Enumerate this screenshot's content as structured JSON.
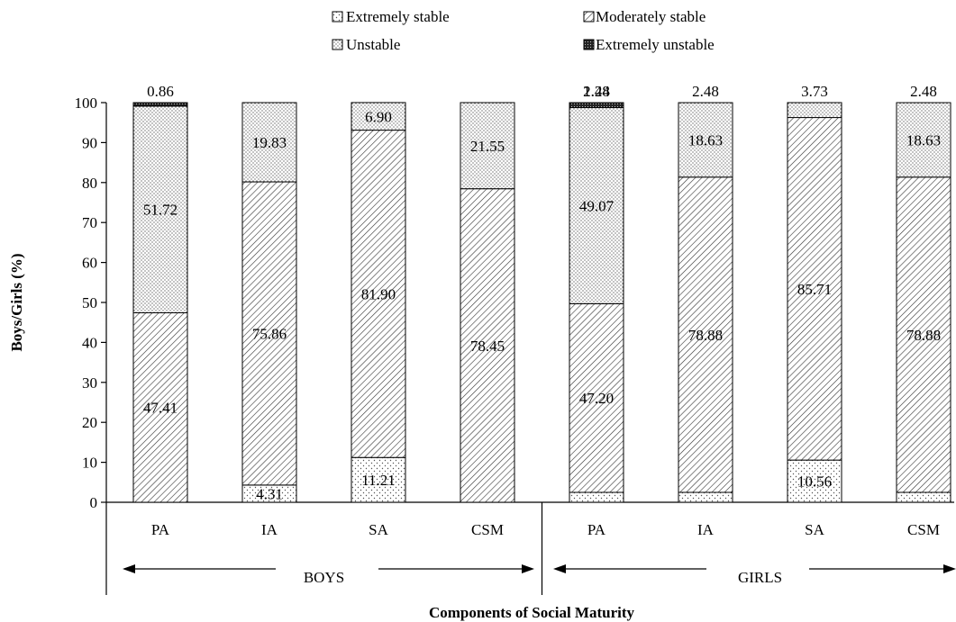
{
  "chart_data": {
    "type": "bar",
    "stacked": true,
    "xlabel": "Components of Social Maturity",
    "ylabel": "Boys/Girls (%)",
    "ylim": [
      0,
      100
    ],
    "yticks": [
      0,
      10,
      20,
      30,
      40,
      50,
      60,
      70,
      80,
      90,
      100
    ],
    "legend_position": "top",
    "groups": [
      {
        "label": "BOYS",
        "categories": [
          "PA",
          "IA",
          "SA",
          "CSM"
        ]
      },
      {
        "label": "GIRLS",
        "categories": [
          "PA",
          "IA",
          "SA",
          "CSM"
        ]
      }
    ],
    "categories": [
      "PA",
      "IA",
      "SA",
      "CSM",
      "PA",
      "IA",
      "SA",
      "CSM"
    ],
    "series": [
      {
        "name": "Extremely stable",
        "pattern": "fine-dots",
        "values": [
          0,
          4.31,
          11.21,
          0,
          2.48,
          2.48,
          10.56,
          2.48
        ],
        "labels": [
          "",
          "4.31",
          "11.21",
          "",
          "2.48",
          "2.48",
          "10.56",
          "2.48"
        ]
      },
      {
        "name": "Moderately stable",
        "pattern": "diagonal-hatch",
        "values": [
          47.41,
          75.86,
          81.9,
          78.45,
          47.2,
          78.88,
          85.71,
          78.88
        ],
        "labels": [
          "47.41",
          "75.86",
          "81.90",
          "78.45",
          "47.20",
          "78.88",
          "85.71",
          "78.88"
        ]
      },
      {
        "name": "Unstable",
        "pattern": "dots",
        "values": [
          51.72,
          19.83,
          6.9,
          21.55,
          49.07,
          18.63,
          3.73,
          18.63
        ],
        "labels": [
          "51.72",
          "19.83",
          "6.90",
          "21.55",
          "49.07",
          "18.63",
          "3.73",
          "18.63"
        ]
      },
      {
        "name": "Extremely unstable",
        "pattern": "dark-dots",
        "values": [
          0.86,
          0,
          0,
          0,
          1.24,
          0,
          0,
          0
        ],
        "labels": [
          "0.86",
          "",
          "",
          "",
          "1.24",
          "",
          "",
          ""
        ]
      }
    ]
  }
}
